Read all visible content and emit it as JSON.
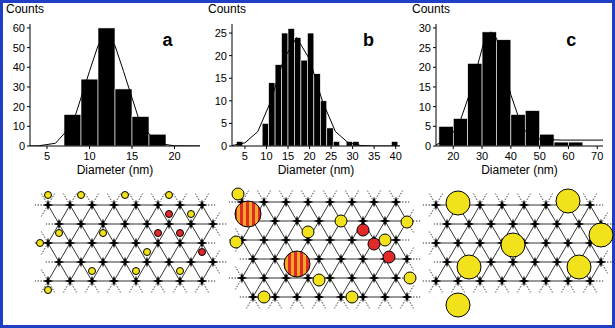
{
  "chart_data": [
    {
      "type": "histogram",
      "title": "a",
      "x_label": "Diameter (nm)",
      "y_label": "Counts",
      "bins": [
        7,
        9,
        11,
        13,
        15,
        17,
        19
      ],
      "series": [
        {
          "type": "bar",
          "values": [
            16,
            34,
            60,
            29,
            15,
            6
          ],
          "color": "#000000"
        },
        {
          "type": "line",
          "x": [
            3,
            4,
            6,
            8,
            10,
            11,
            12,
            13,
            14,
            16,
            18,
            20,
            23
          ],
          "values": [
            0,
            0.1,
            1.4,
            11,
            38,
            51,
            57,
            51,
            38,
            11,
            1.4,
            0.1,
            0
          ],
          "color": "#000000"
        }
      ],
      "xlim": [
        3,
        23
      ],
      "xticks": [
        5,
        10,
        15,
        20
      ],
      "ylim": [
        0,
        62
      ],
      "yticks": [
        0,
        10,
        20,
        30,
        40,
        50,
        60
      ]
    },
    {
      "type": "histogram",
      "title": "b",
      "x_label": "Diameter (nm)",
      "y_label": "Counts",
      "bins": [
        3,
        4.5,
        6,
        7.5,
        9,
        10.5,
        12,
        13.5,
        15,
        16.5,
        18,
        19.5,
        21,
        22.5,
        24,
        25.5,
        27,
        28.5,
        30,
        31.5,
        33,
        34.5,
        36,
        37.5,
        39,
        40.5
      ],
      "series": [
        {
          "type": "bar",
          "values": [
            1,
            0,
            0,
            0,
            5,
            14,
            18,
            25,
            26,
            24,
            19,
            25,
            16,
            10,
            4,
            1,
            0,
            1,
            1,
            0,
            0,
            0,
            0,
            0,
            1
          ],
          "color": "#000000"
        },
        {
          "type": "line",
          "x": [
            2,
            5,
            8,
            11,
            14,
            17,
            20,
            23,
            26,
            29,
            32,
            35,
            41
          ],
          "values": [
            0.1,
            0.7,
            3.2,
            9.9,
            19.2,
            24,
            19.2,
            9.9,
            3.2,
            0.7,
            0.1,
            0,
            0
          ],
          "color": "#000000"
        }
      ],
      "xlim": [
        2,
        41
      ],
      "xticks": [
        5,
        10,
        15,
        20,
        25,
        30,
        35,
        40
      ],
      "ylim": [
        0,
        27
      ],
      "yticks": [
        0,
        5,
        10,
        15,
        20,
        25
      ]
    },
    {
      "type": "histogram",
      "title": "c",
      "x_label": "Diameter (nm)",
      "y_label": "Counts",
      "bins": [
        15,
        20,
        25,
        30,
        35,
        40,
        45,
        50,
        55,
        60,
        65
      ],
      "series": [
        {
          "type": "bar",
          "values": [
            5,
            7,
            21,
            29,
            27,
            8,
            9,
            3,
            1,
            1
          ],
          "color": "#000000"
        },
        {
          "type": "line",
          "x": [
            14,
            18,
            22,
            26,
            29,
            31,
            33,
            35,
            37,
            40,
            44,
            48,
            52,
            58,
            64,
            72
          ],
          "values": [
            0.3,
            1.6,
            5.5,
            14,
            22,
            27.4,
            29,
            27.4,
            22,
            13,
            4.5,
            2,
            1.6,
            1.5,
            1.5,
            1.5
          ],
          "color": "#000000"
        }
      ],
      "xlim": [
        14,
        72
      ],
      "xticks": [
        20,
        30,
        40,
        50,
        60,
        70
      ],
      "ylim": [
        0,
        31
      ],
      "yticks": [
        0,
        5,
        10,
        15,
        20,
        25,
        30
      ]
    }
  ]
}
